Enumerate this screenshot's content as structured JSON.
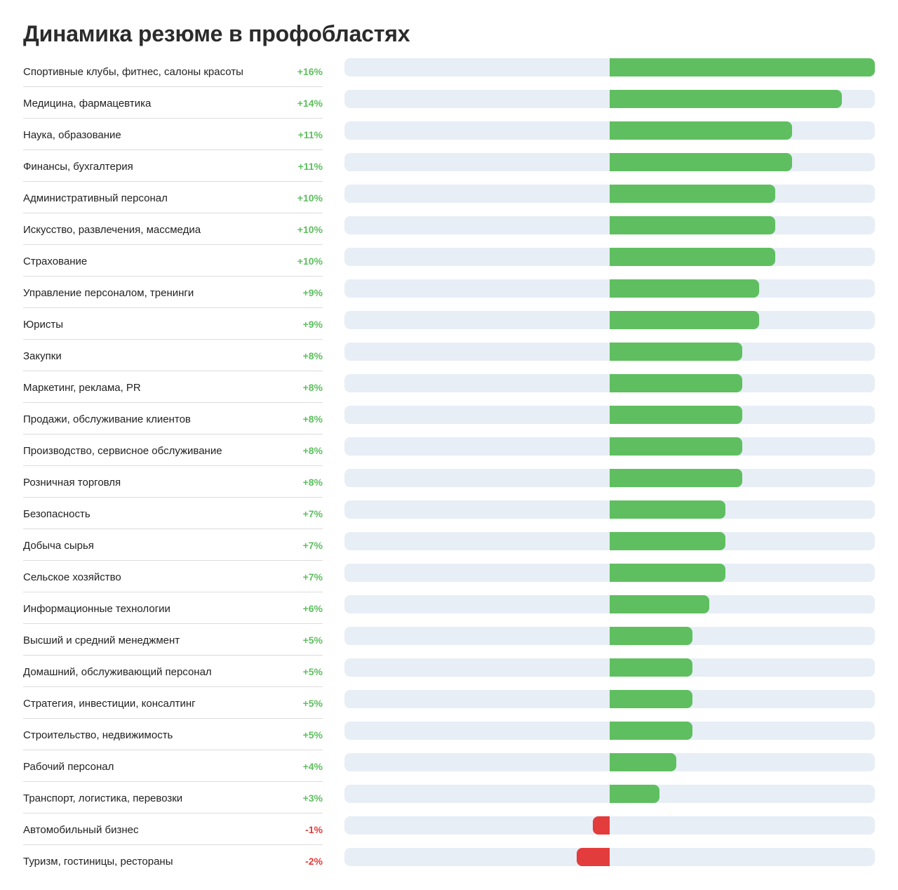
{
  "chart_data": {
    "type": "bar",
    "orientation": "horizontal",
    "title": "Динамика резюме в профобластях",
    "xlim": [
      -16,
      16
    ],
    "grid": false,
    "colors": {
      "positive": "#5fbf60",
      "negative": "#e33c3c",
      "track": "#e7eef6"
    },
    "categories": [
      "Спортивные клубы, фитнес, салоны красоты",
      "Медицина, фармацевтика",
      "Наука, образование",
      "Финансы, бухгалтерия",
      "Административный персонал",
      "Искусство, развлечения, массмедиа",
      "Страхование",
      "Управление персоналом, тренинги",
      "Юристы",
      "Закупки",
      "Маркетинг, реклама, PR",
      "Продажи, обслуживание клиентов",
      "Производство, сервисное обслуживание",
      "Розничная торговля",
      "Безопасность",
      "Добыча сырья",
      "Сельское хозяйство",
      "Информационные технологии",
      "Высший и средний менеджмент",
      "Домашний, обслуживающий персонал",
      "Стратегия, инвестиции, консалтинг",
      "Строительство, недвижимость",
      "Рабочий персонал",
      "Транспорт, логистика, перевозки",
      "Автомобильный бизнес",
      "Туризм, гостиницы, рестораны"
    ],
    "values": [
      16,
      14,
      11,
      11,
      10,
      10,
      10,
      9,
      9,
      8,
      8,
      8,
      8,
      8,
      7,
      7,
      7,
      6,
      5,
      5,
      5,
      5,
      4,
      3,
      -1,
      -2
    ],
    "labels": [
      "+16%",
      "+14%",
      "+11%",
      "+11%",
      "+10%",
      "+10%",
      "+10%",
      "+9%",
      "+9%",
      "+8%",
      "+8%",
      "+8%",
      "+8%",
      "+8%",
      "+7%",
      "+7%",
      "+7%",
      "+6%",
      "+5%",
      "+5%",
      "+5%",
      "+5%",
      "+4%",
      "+3%",
      "-1%",
      "-2%"
    ]
  }
}
